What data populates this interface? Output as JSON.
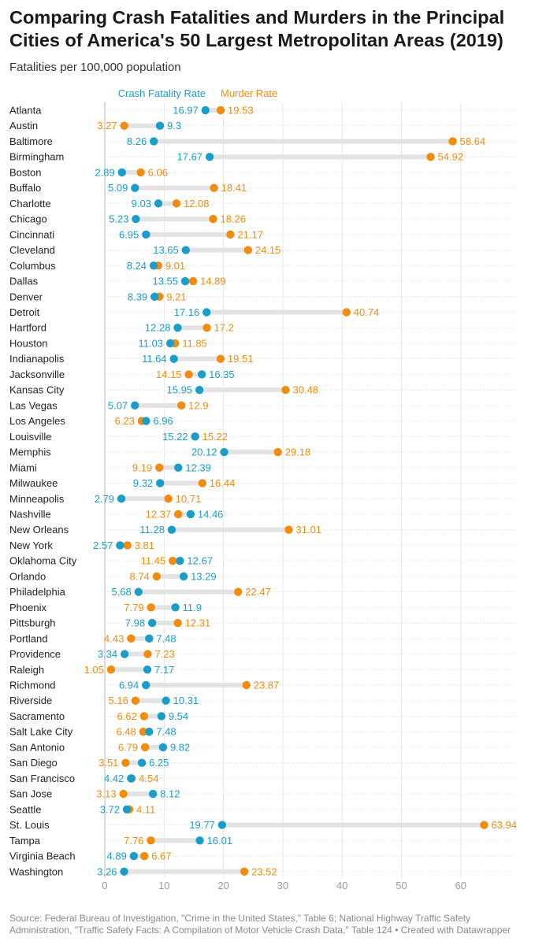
{
  "header": {
    "title": "Comparing Crash Fatalities and Murders in the Principal Cities of America's 50 Largest Metropolitan Areas (2019)",
    "subtitle": "Fatalities per 100,000 population"
  },
  "footer": {
    "source": "Source: Federal Bureau of Investigation, \"Crime in the United States,\" Table 6; National Highway Traffic Safety Administration, \"Traffic Safety Facts: A Compilation of Motor Vehicle Crash Data,\" Table 124 • Created with Datawrapper"
  },
  "colors": {
    "crash": "#1a9ec9",
    "murder": "#f28c0f",
    "bar": "#e3e3e3"
  },
  "chart_data": {
    "type": "dot-range",
    "title": "Comparing Crash Fatalities and Murders in the Principal Cities of America's 50 Largest Metropolitan Areas (2019)",
    "xlabel": "Fatalities per 100,000 population",
    "xlim": [
      0,
      70
    ],
    "xticks": [
      0,
      10,
      20,
      30,
      40,
      50,
      60
    ],
    "legend": [
      "Crash Fatality Rate",
      "Murder Rate"
    ],
    "categories": [
      "Atlanta",
      "Austin",
      "Baltimore",
      "Birmingham",
      "Boston",
      "Buffalo",
      "Charlotte",
      "Chicago",
      "Cincinnati",
      "Cleveland",
      "Columbus",
      "Dallas",
      "Denver",
      "Detroit",
      "Hartford",
      "Houston",
      "Indianapolis",
      "Jacksonville",
      "Kansas City",
      "Las Vegas",
      "Los Angeles",
      "Louisville",
      "Memphis",
      "Miami",
      "Milwaukee",
      "Minneapolis",
      "Nashville",
      "New Orleans",
      "New York",
      "Oklahoma City",
      "Orlando",
      "Philadelphia",
      "Phoenix",
      "Pittsburgh",
      "Portland",
      "Providence",
      "Raleigh",
      "Richmond",
      "Riverside",
      "Sacramento",
      "Salt Lake City",
      "San Antonio",
      "San Diego",
      "San Francisco",
      "San Jose",
      "Seattle",
      "St. Louis",
      "Tampa",
      "Virginia Beach",
      "Washington"
    ],
    "series": [
      {
        "name": "Crash Fatality Rate",
        "values": [
          16.97,
          9.3,
          8.26,
          17.67,
          2.89,
          5.09,
          9.03,
          5.23,
          6.95,
          13.65,
          8.24,
          13.55,
          8.39,
          17.16,
          12.28,
          11.03,
          11.64,
          16.35,
          15.95,
          5.07,
          6.96,
          15.22,
          20.12,
          12.39,
          9.32,
          2.79,
          14.46,
          11.28,
          2.57,
          12.67,
          13.29,
          5.68,
          11.9,
          7.98,
          7.48,
          3.34,
          7.17,
          6.94,
          10.31,
          9.54,
          7.48,
          9.82,
          6.25,
          4.42,
          8.12,
          3.72,
          19.77,
          16.01,
          4.89,
          3.26
        ]
      },
      {
        "name": "Murder Rate",
        "values": [
          19.53,
          3.27,
          58.64,
          54.92,
          6.06,
          18.41,
          12.08,
          18.26,
          21.17,
          24.15,
          9.01,
          14.89,
          9.21,
          40.74,
          17.2,
          11.85,
          19.51,
          14.15,
          30.48,
          12.9,
          6.23,
          15.22,
          29.18,
          9.19,
          16.44,
          10.71,
          12.37,
          31.01,
          3.81,
          11.45,
          8.74,
          22.47,
          7.79,
          12.31,
          4.43,
          7.23,
          1.05,
          23.87,
          5.16,
          6.62,
          6.48,
          6.79,
          3.51,
          4.54,
          3.13,
          4.11,
          63.94,
          7.76,
          6.67,
          23.52
        ]
      }
    ]
  }
}
